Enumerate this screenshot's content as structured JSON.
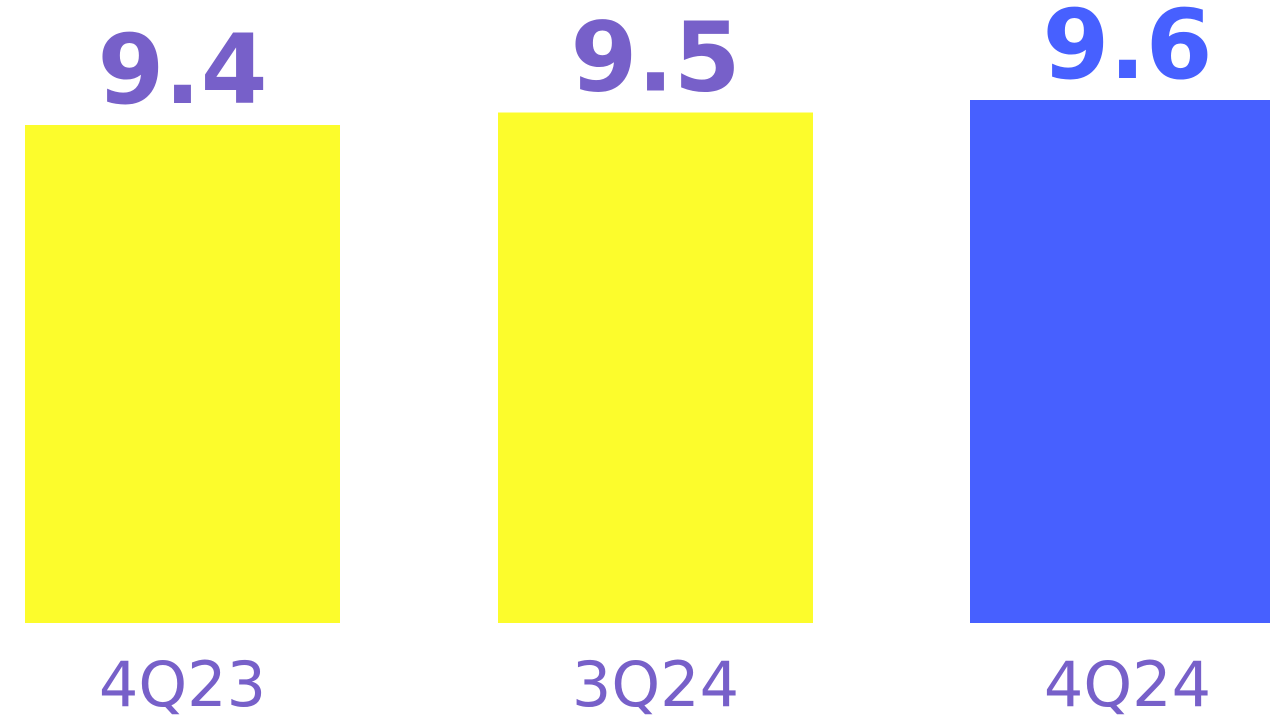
{
  "chart_data": {
    "type": "bar",
    "categories": [
      "4Q23",
      "3Q24",
      "4Q24"
    ],
    "values": [
      9.4,
      9.5,
      9.6
    ],
    "value_labels": [
      "9.4",
      "9.5",
      "9.6"
    ],
    "bar_colors": [
      "#FCFC2C",
      "#FCFC2C",
      "#4760FF"
    ],
    "value_label_colors": [
      "#7760C9",
      "#7760C9",
      "#4760FF"
    ],
    "category_label_color": "#7760C9",
    "title": "",
    "xlabel": "",
    "ylabel": "",
    "grid": false,
    "legend": "none"
  }
}
